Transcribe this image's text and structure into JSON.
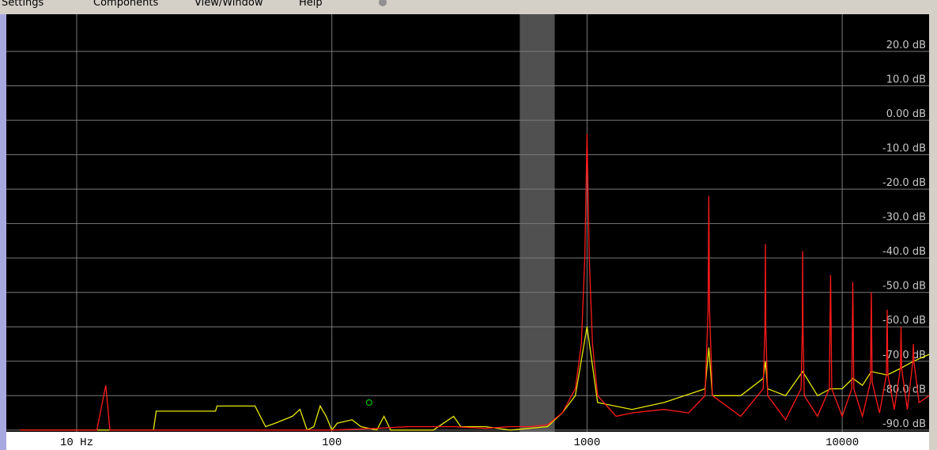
{
  "menu": [
    "Settings",
    "Components",
    "View/Window",
    "Help"
  ],
  "chart_data": {
    "type": "line",
    "xscale": "log",
    "grid": true,
    "xlim": [
      5.3,
      21900
    ],
    "ylim": [
      -90.5,
      30.8
    ],
    "xticks": [
      {
        "value": 10,
        "label": "10 Hz"
      },
      100,
      1000,
      10000
    ],
    "yticks": [
      {
        "value": 20,
        "label": "20.0 dB"
      },
      {
        "value": 10,
        "label": "10.0 dB"
      },
      {
        "value": 0,
        "label": "0.00 dB"
      },
      {
        "value": -10,
        "label": "-10.0 dB"
      },
      {
        "value": -20,
        "label": "-20.0 dB"
      },
      {
        "value": -30,
        "label": "-30.0 dB"
      },
      {
        "value": -40,
        "label": "-40.0 dB"
      },
      {
        "value": -50,
        "label": "-50.0 dB"
      },
      {
        "value": -60,
        "label": "-60.0 dB"
      },
      {
        "value": -70,
        "label": "-70.0 dB"
      },
      {
        "value": -80,
        "label": "-80.0 dB"
      },
      {
        "value": -90,
        "label": "-90.0 dB"
      }
    ],
    "highlight": [
      545,
      747
    ],
    "cursor": {
      "x": 140,
      "y": -82,
      "color": "#00c000"
    },
    "series": [
      {
        "color": "#e8e800",
        "x": [
          6,
          20,
          20.5,
          35,
          35.5,
          50,
          55,
          60,
          70,
          75,
          80,
          85,
          90,
          95,
          100,
          105,
          120,
          130,
          150,
          160,
          170,
          250,
          300,
          320,
          400,
          500,
          700,
          800,
          900,
          1000,
          1100,
          1500,
          2000,
          2900,
          3000,
          3100,
          4000,
          4900,
          5000,
          5100,
          6000,
          7000,
          8000,
          9000,
          10000,
          11000,
          12000,
          13000,
          15000,
          17000,
          19000,
          21900
        ],
        "values": [
          -90,
          -90,
          -84.5,
          -84.5,
          -83,
          -83,
          -89,
          -88,
          -86,
          -84,
          -90,
          -89,
          -83,
          -86,
          -90,
          -88,
          -87,
          -89,
          -90,
          -86,
          -90,
          -90,
          -86,
          -89,
          -89,
          -90,
          -89,
          -85,
          -80,
          -60,
          -82,
          -84,
          -82,
          -78,
          -66,
          -80,
          -80,
          -75,
          -70,
          -78,
          -80,
          -73,
          -80,
          -78,
          -78,
          -75,
          -77,
          -73,
          -74,
          -72,
          -70,
          -68
        ]
      },
      {
        "color": "#ff1a1a",
        "x": [
          6,
          12,
          13,
          13.5,
          20,
          50,
          100,
          150,
          200,
          300,
          400,
          500,
          600,
          700,
          800,
          900,
          950,
          980,
          1000,
          1020,
          1050,
          1100,
          1300,
          1500,
          2000,
          2500,
          2900,
          2980,
          3000,
          3020,
          3100,
          4000,
          4900,
          4980,
          5000,
          5020,
          5100,
          6000,
          6900,
          6980,
          7000,
          7020,
          7100,
          8000,
          8900,
          9000,
          9100,
          10000,
          10900,
          11000,
          11100,
          12000,
          12900,
          13000,
          13100,
          14000,
          14900,
          15000,
          15100,
          16000,
          16900,
          17000,
          17100,
          18000,
          18900,
          19000,
          19100,
          20000,
          21900
        ],
        "values": [
          -90,
          -90,
          -77,
          -90,
          -90,
          -90,
          -90,
          -89.5,
          -89,
          -89,
          -89.5,
          -89,
          -89,
          -88.5,
          -85,
          -78,
          -65,
          -40,
          -4,
          -40,
          -65,
          -80,
          -86,
          -85,
          -84,
          -85,
          -80,
          -55,
          -22,
          -55,
          -80,
          -86,
          -78,
          -60,
          -36,
          -60,
          -80,
          -87,
          -78,
          -60,
          -38,
          -60,
          -80,
          -86,
          -78,
          -45,
          -78,
          -86,
          -78,
          -47,
          -78,
          -86,
          -76,
          -50,
          -76,
          -85,
          -74,
          -55,
          -74,
          -84,
          -72,
          -60,
          -72,
          -84,
          -70,
          -65,
          -70,
          -82,
          -80
        ]
      }
    ]
  }
}
